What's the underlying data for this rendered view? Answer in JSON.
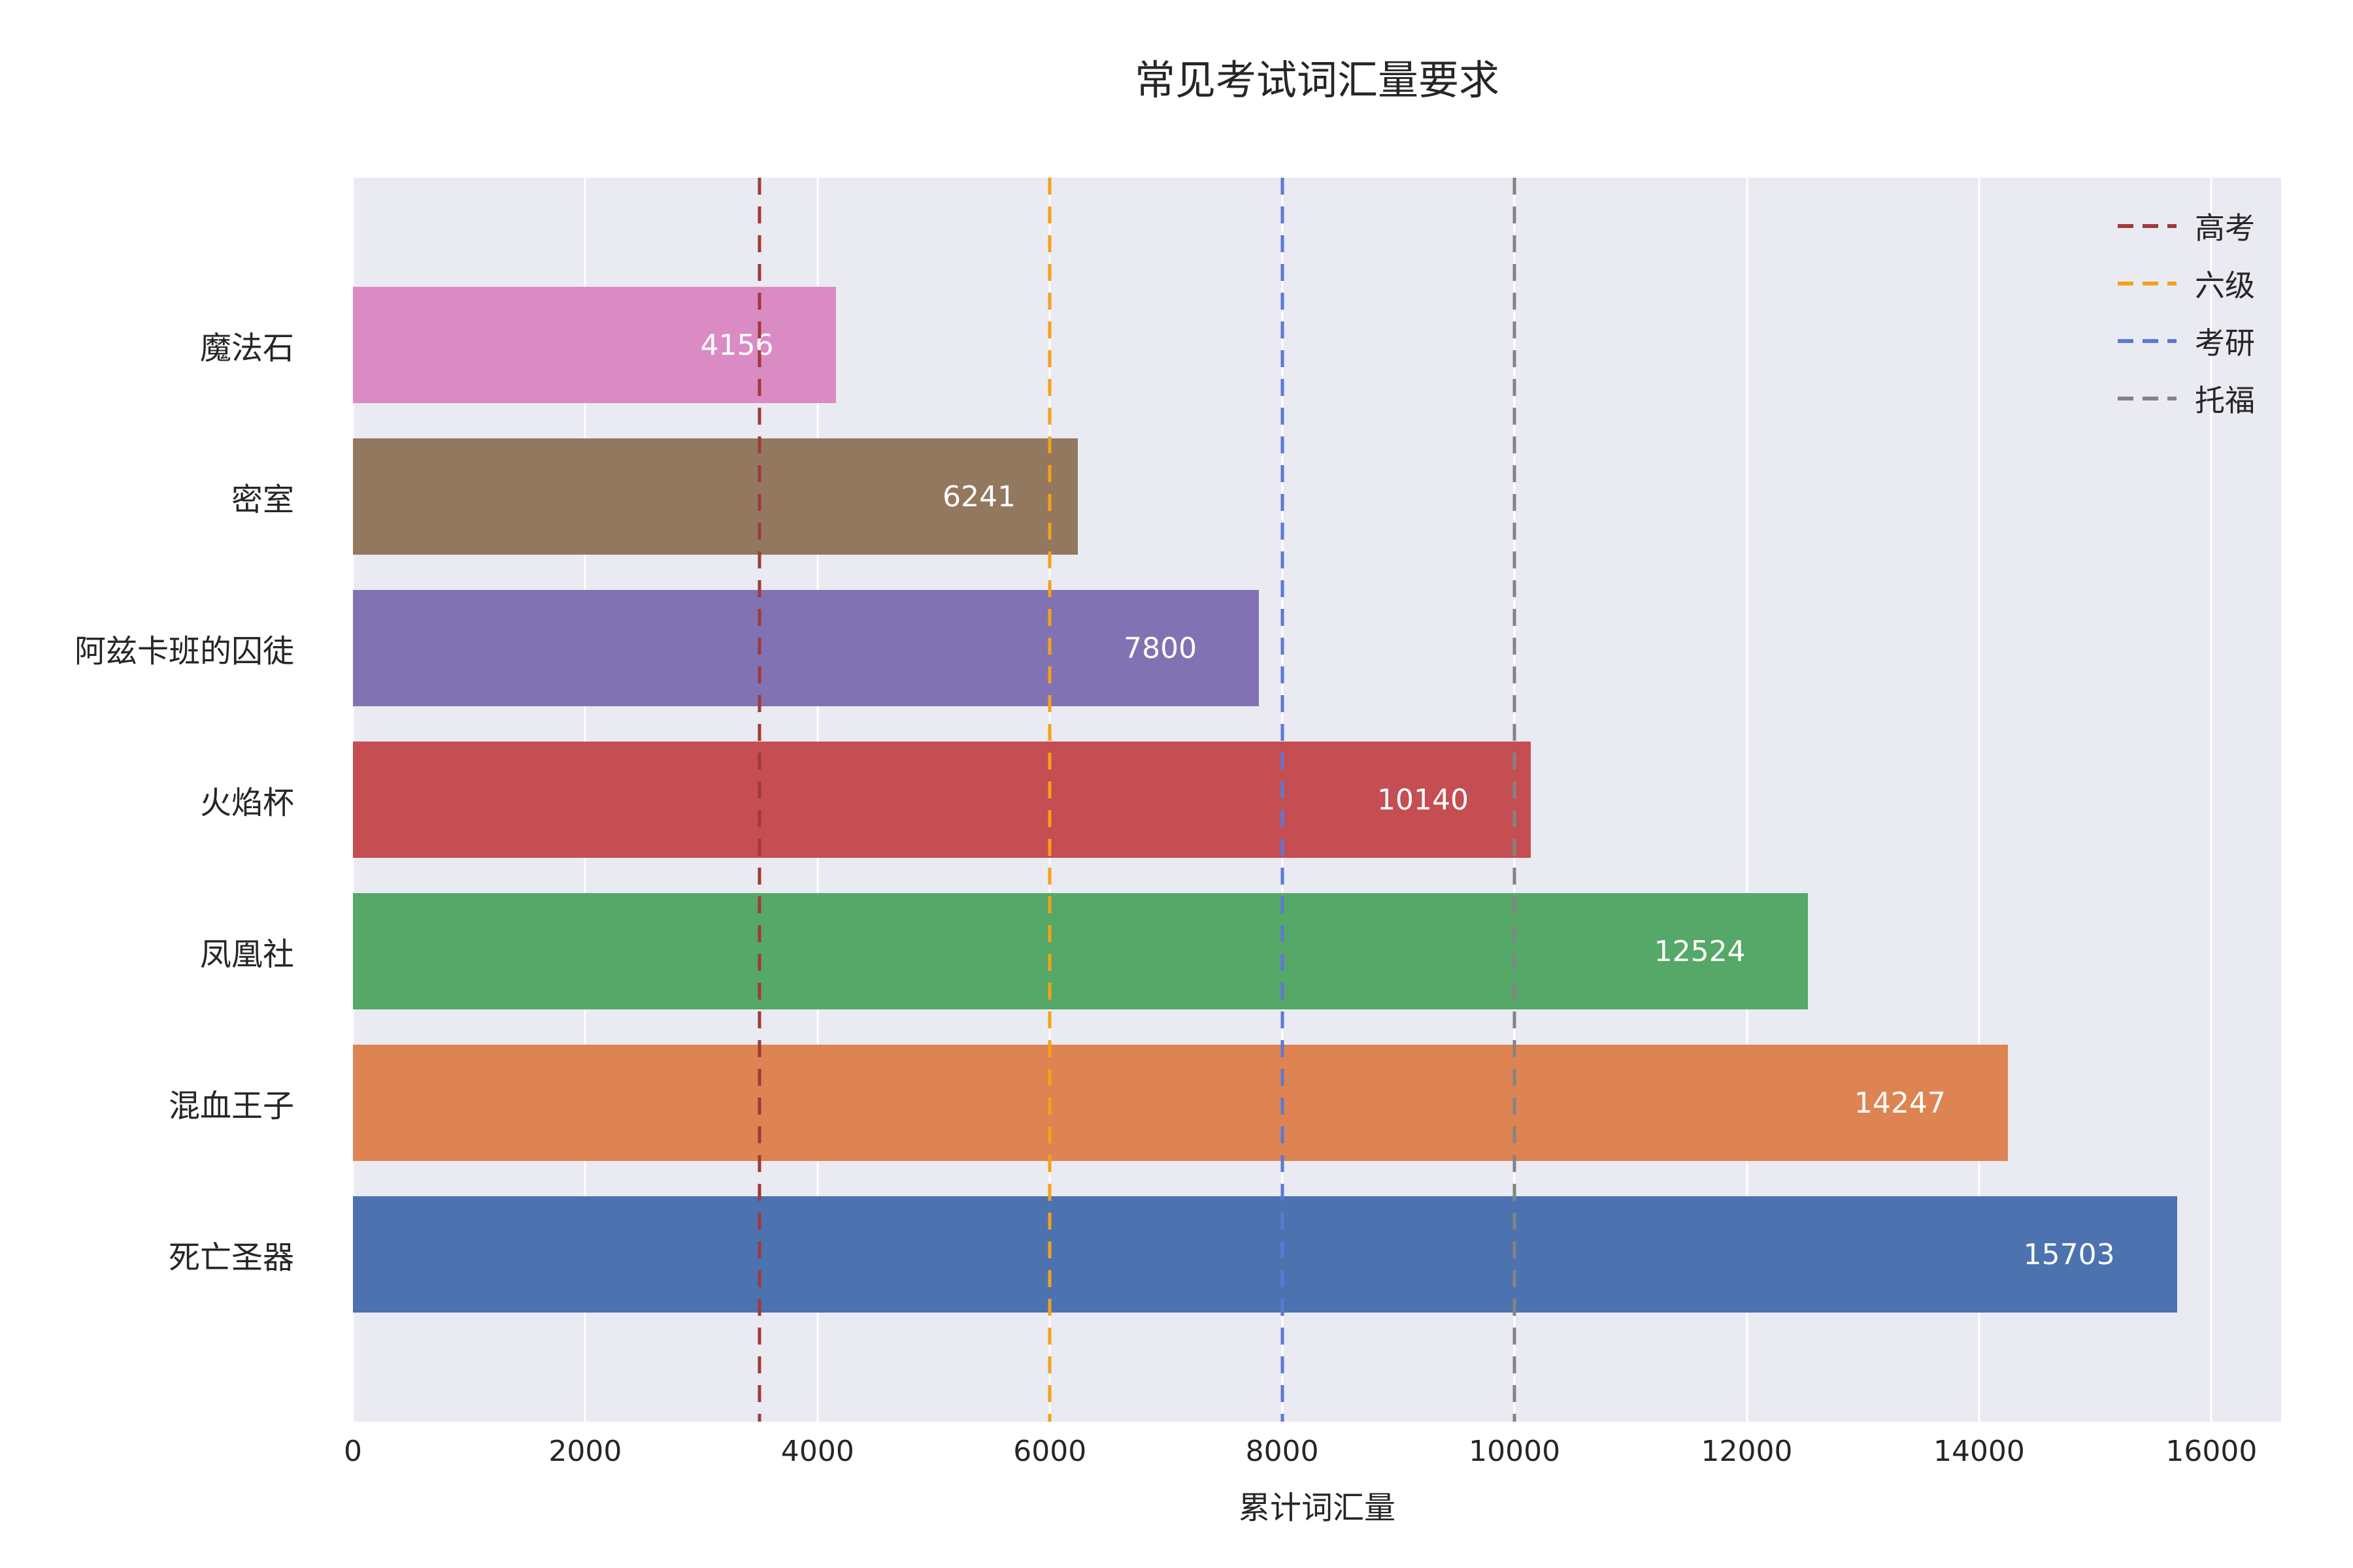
{
  "title": "常见考试词汇量要求",
  "chart_data": {
    "type": "bar",
    "orientation": "horizontal",
    "title": "常见考试词汇量要求",
    "xlabel": "累计词汇量",
    "ylabel": "",
    "categories": [
      "魔法石",
      "密室",
      "阿兹卡班的囚徒",
      "火焰杯",
      "凤凰社",
      "混血王子",
      "死亡圣器"
    ],
    "values": [
      4156,
      6241,
      7800,
      10140,
      12524,
      14247,
      15703
    ],
    "bar_colors": [
      "#da8bc3",
      "#937860",
      "#8172b3",
      "#c44e52",
      "#55a868",
      "#dd8452",
      "#4c72b0"
    ],
    "value_label_color": "#ffffff",
    "xlim": [
      0,
      16600
    ],
    "xticks": [
      0,
      2000,
      4000,
      6000,
      8000,
      10000,
      12000,
      14000,
      16000
    ],
    "grid": true,
    "plot_background": "#eaeaf2",
    "gridline_color": "#ffffff",
    "legend_position": "upper right",
    "reference_lines": [
      {
        "label": "高考",
        "value": 3500,
        "color": "#a03a3a",
        "style": "dashed"
      },
      {
        "label": "六级",
        "value": 6000,
        "color": "#f5a118",
        "style": "dashed"
      },
      {
        "label": "考研",
        "value": 8000,
        "color": "#5e78d4",
        "style": "dashed"
      },
      {
        "label": "托福",
        "value": 10000,
        "color": "#848484",
        "style": "dashed"
      }
    ]
  }
}
